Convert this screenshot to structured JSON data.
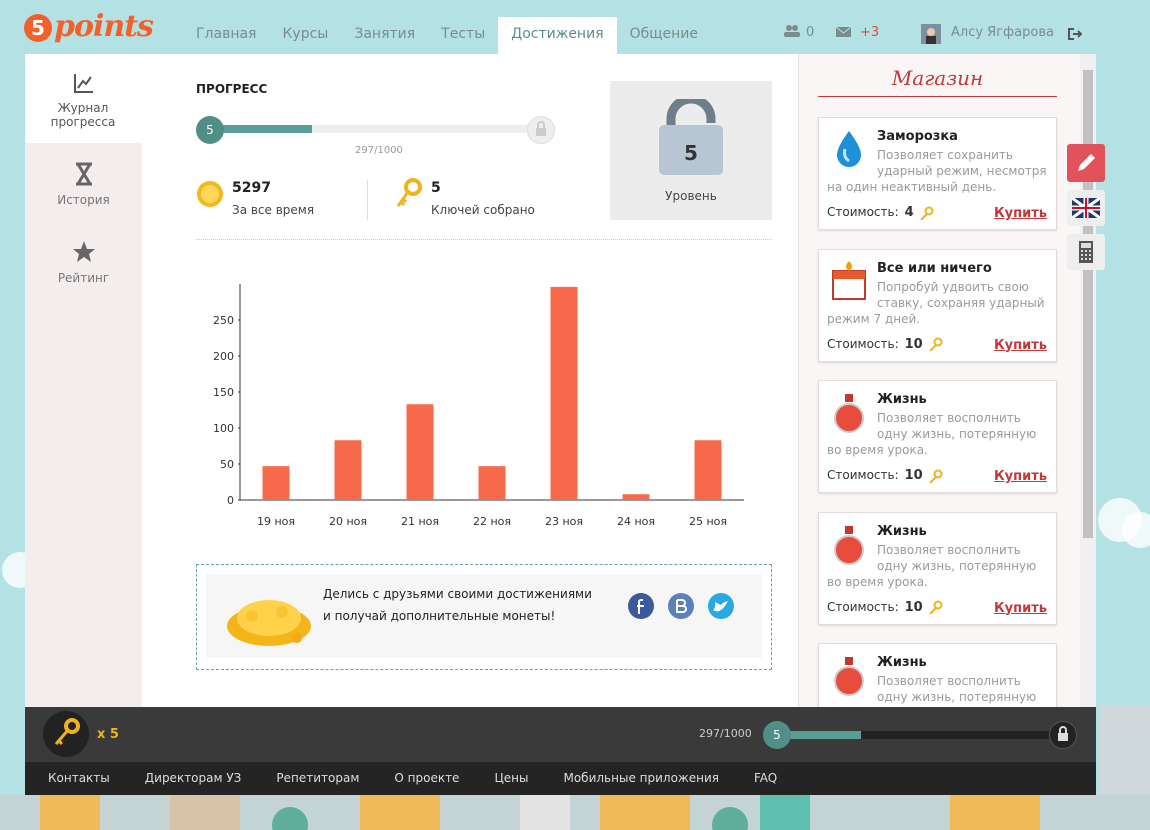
{
  "header": {
    "logo_digit": "5",
    "logo_text": "points",
    "nav": [
      "Главная",
      "Курсы",
      "Занятия",
      "Тесты",
      "Достижения",
      "Общение"
    ],
    "active_nav": 4,
    "friends": "0",
    "messages": "+3",
    "user_name": "Алсу Ягфарова"
  },
  "sidebar": [
    "Журнал прогресса",
    "История",
    "Рейтинг"
  ],
  "progress": {
    "title": "ПРОГРЕСС",
    "level": 5,
    "points": 297,
    "points_max": 1000,
    "points_label": "297/1000",
    "coins": 5297,
    "coins_label": "За все время",
    "keys": 5,
    "keys_label": "Ключей собрано",
    "level_label": "Уровень"
  },
  "chart_data": {
    "type": "bar",
    "categories": [
      "19 ноя",
      "20 ноя",
      "21 ноя",
      "22 ноя",
      "23 ноя",
      "24 ноя",
      "25 ноя"
    ],
    "values": [
      47,
      83,
      133,
      47,
      296,
      8,
      83
    ],
    "color": "#f76a4b",
    "ylim": [
      0,
      300
    ],
    "yticks": [
      0,
      50,
      100,
      150,
      200,
      250
    ]
  },
  "share": {
    "line1": "Делись с друзьями своими достижениями",
    "line2": "и получай дополнительные монеты!"
  },
  "shop": {
    "title": "Магазин",
    "cost_label": "Стоимость:",
    "buy_label": "Купить",
    "items": [
      {
        "name": "Заморозка",
        "description": "Позволяет сохранить ударный режим, несмотря на один неактивный день.",
        "cost": 4
      },
      {
        "name": "Все или ничего",
        "description": "Попробуй удвоить свою ставку, сохраняя ударный режим 7 дней.",
        "cost": 10
      },
      {
        "name": "Жизнь",
        "description": "Позволяет восполнить одну жизнь, потерянную во время урока.",
        "cost": 10
      },
      {
        "name": "Жизнь",
        "description": "Позволяет восполнить одну жизнь, потерянную во время урока.",
        "cost": 10
      },
      {
        "name": "Жизнь",
        "description": "Позволяет восполнить одну жизнь, потерянную во время"
      }
    ]
  },
  "bottom_bar": {
    "keys_label": "x 5"
  },
  "footer": [
    "Контакты",
    "Директорам УЗ",
    "Репетиторам",
    "О проекте",
    "Цены",
    "Мобильные приложения",
    "FAQ"
  ]
}
